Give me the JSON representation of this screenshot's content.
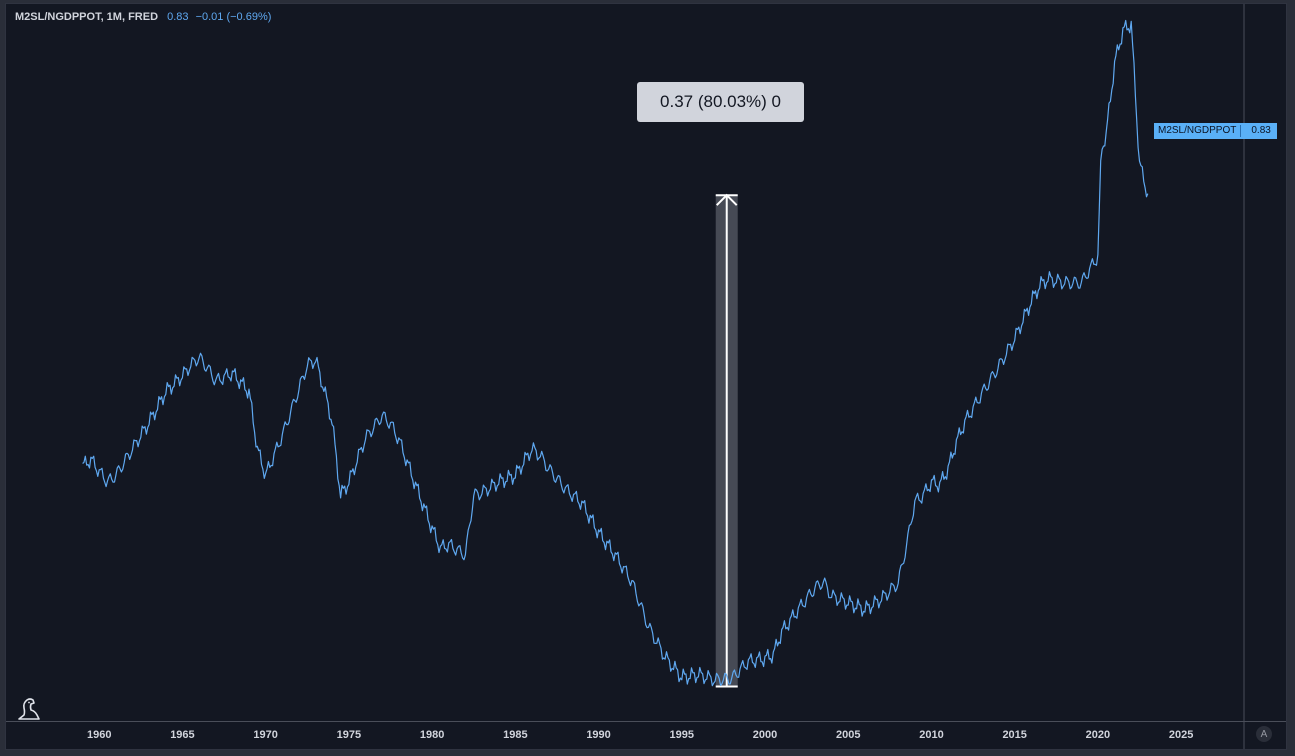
{
  "legend": {
    "symbol": "M2SL/NGDPPOT, 1M, FRED",
    "last_value": "0.83",
    "change": "−0.01 (−0.69%)"
  },
  "measure": {
    "label": "0.37 (80.03%) 0",
    "from_date": 1997.7,
    "from_value": 0.466,
    "to_value": 0.836
  },
  "price_tag": {
    "name": "M2SL/NGDPPOT",
    "value": "0.83"
  },
  "auto_button": "A",
  "logo_icon": "tradingview-dino-icon",
  "colors": {
    "background": "#131722",
    "line": "#5fa8f0",
    "axis_text": "#d1d4dc",
    "tag": "#5ab0f7",
    "measure_bar": "#50535e"
  },
  "chart_data": {
    "type": "line",
    "title": "M2SL/NGDPPOT, 1M, FRED",
    "xlim": [
      1954.4,
      2031.3
    ],
    "ylim": [
      0.44,
      0.98
    ],
    "x_ticks": [
      1960,
      1965,
      1970,
      1975,
      1980,
      1985,
      1990,
      1995,
      2000,
      2005,
      2010,
      2015,
      2020,
      2025
    ],
    "x_tick_labels": [
      "1960",
      "1965",
      "1970",
      "1975",
      "1980",
      "1985",
      "1990",
      "1995",
      "2000",
      "2005",
      "2010",
      "2015",
      "2020",
      "2025"
    ],
    "grid": false,
    "series": [
      {
        "x": [
          1959.0,
          1959.5,
          1960.0,
          1960.5,
          1961.0,
          1962.0,
          1963.0,
          1964.0,
          1965.0,
          1965.5,
          1966.0,
          1966.5,
          1967.0,
          1968.0,
          1969.0,
          1969.5,
          1970.0,
          1971.0,
          1972.0,
          1972.5,
          1973.0,
          1973.5,
          1974.0,
          1974.5,
          1975.0,
          1976.0,
          1977.0,
          1977.5,
          1978.0,
          1979.0,
          1980.0,
          1980.5,
          1981.0,
          1982.0,
          1982.5,
          1983.0,
          1984.0,
          1985.0,
          1986.0,
          1986.5,
          1987.0,
          1988.0,
          1989.0,
          1990.0,
          1991.0,
          1992.0,
          1993.0,
          1994.0,
          1995.0,
          1996.0,
          1997.0,
          1998.0,
          1999.0,
          2000.0,
          2000.5,
          2001.0,
          2002.0,
          2003.0,
          2003.5,
          2004.0,
          2005.0,
          2006.0,
          2007.0,
          2008.0,
          2008.5,
          2009.0,
          2009.5,
          2010.0,
          2010.5,
          2011.0,
          2011.5,
          2012.0,
          2013.0,
          2014.0,
          2015.0,
          2016.0,
          2016.5,
          2017.0,
          2018.0,
          2019.0,
          2019.5,
          2020.0,
          2020.2,
          2020.5,
          2021.0,
          2021.5,
          2022.0,
          2022.5,
          2023.0
        ],
        "y": [
          0.632,
          0.637,
          0.628,
          0.62,
          0.625,
          0.645,
          0.665,
          0.688,
          0.7,
          0.708,
          0.714,
          0.706,
          0.696,
          0.702,
          0.688,
          0.645,
          0.625,
          0.655,
          0.69,
          0.708,
          0.712,
          0.69,
          0.665,
          0.61,
          0.62,
          0.653,
          0.67,
          0.664,
          0.652,
          0.618,
          0.585,
          0.57,
          0.573,
          0.565,
          0.61,
          0.612,
          0.62,
          0.625,
          0.645,
          0.64,
          0.63,
          0.615,
          0.604,
          0.582,
          0.565,
          0.545,
          0.511,
          0.488,
          0.473,
          0.475,
          0.471,
          0.472,
          0.485,
          0.487,
          0.49,
          0.507,
          0.524,
          0.54,
          0.545,
          0.534,
          0.529,
          0.524,
          0.532,
          0.544,
          0.572,
          0.605,
          0.61,
          0.62,
          0.618,
          0.63,
          0.65,
          0.665,
          0.686,
          0.706,
          0.728,
          0.756,
          0.768,
          0.773,
          0.77,
          0.77,
          0.78,
          0.79,
          0.87,
          0.882,
          0.935,
          0.96,
          0.965,
          0.86,
          0.836
        ]
      }
    ]
  }
}
